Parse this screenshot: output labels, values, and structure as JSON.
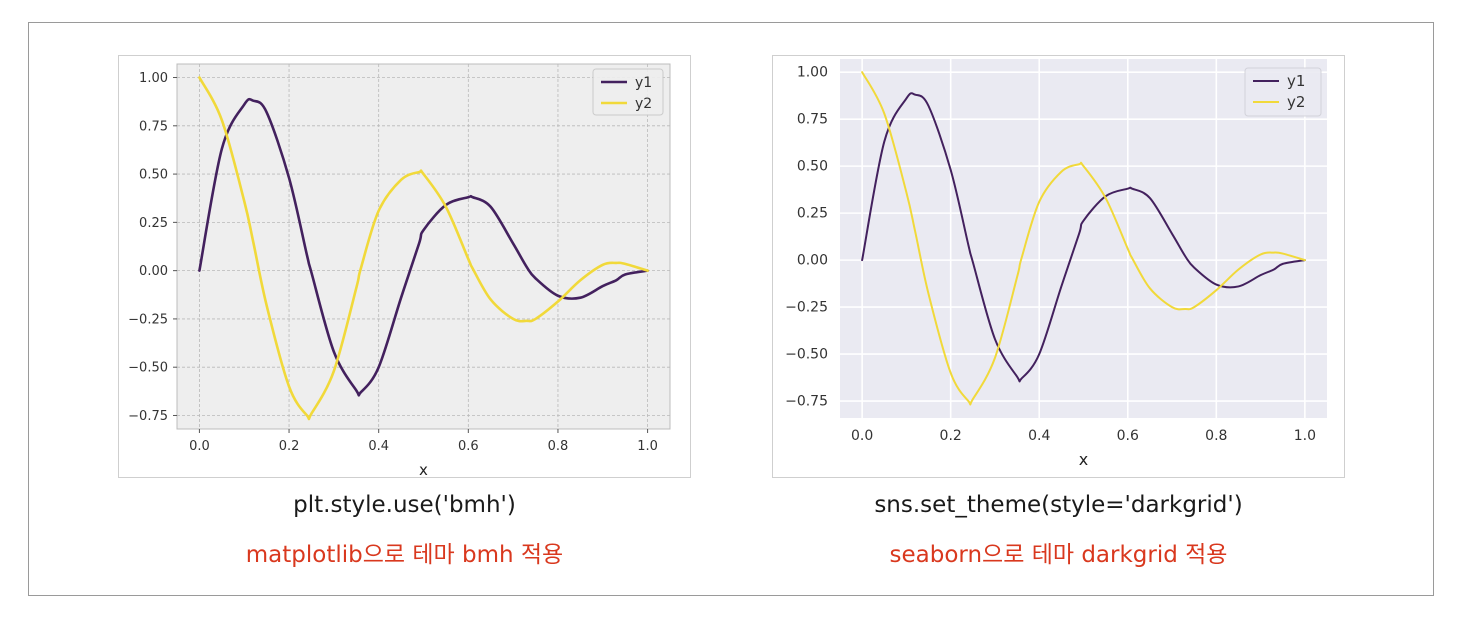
{
  "colors": {
    "y1": "#43215e",
    "y2": "#f1d93a",
    "bmh_bg": "#eeeeee",
    "darkgrid_bg": "#eaeaf2",
    "caption_red": "#d9381e"
  },
  "captions": {
    "left_code": "plt.style.use('bmh')",
    "left_desc": "matplotlib으로 테마 bmh 적용",
    "right_code": "sns.set_theme(style='darkgrid')",
    "right_desc": "seaborn으로 테마 darkgrid 적용"
  },
  "chart_data": [
    {
      "type": "line",
      "style": "bmh",
      "title": "",
      "xlabel": "x",
      "ylabel": "",
      "xlim": [
        -0.05,
        1.05
      ],
      "ylim": [
        -0.82,
        1.07
      ],
      "xticks": [
        0.0,
        0.2,
        0.4,
        0.6,
        0.8,
        1.0
      ],
      "xtick_labels": [
        "0.0",
        "0.2",
        "0.4",
        "0.6",
        "0.8",
        "1.0"
      ],
      "yticks": [
        1.0,
        0.75,
        0.5,
        0.25,
        0.0,
        -0.25,
        -0.5,
        -0.75
      ],
      "ytick_labels": [
        "1.00",
        "0.75",
        "0.50",
        "0.25",
        "0.00",
        "−0.25",
        "−0.50",
        "−0.75"
      ],
      "grid": true,
      "legend_position": "top-right",
      "x": [
        0.0,
        0.05,
        0.1,
        0.12,
        0.15,
        0.2,
        0.24,
        0.25,
        0.3,
        0.35,
        0.36,
        0.4,
        0.45,
        0.49,
        0.5,
        0.55,
        0.6,
        0.61,
        0.65,
        0.7,
        0.73,
        0.75,
        0.8,
        0.85,
        0.9,
        0.93,
        0.95,
        1.0
      ],
      "series": [
        {
          "name": "y1",
          "values": [
            0.0,
            0.63,
            0.86,
            0.88,
            0.82,
            0.48,
            0.08,
            -0.01,
            -0.42,
            -0.62,
            -0.63,
            -0.5,
            -0.14,
            0.14,
            0.21,
            0.34,
            0.38,
            0.38,
            0.33,
            0.14,
            0.02,
            -0.04,
            -0.13,
            -0.14,
            -0.08,
            -0.05,
            -0.02,
            0.0
          ]
        },
        {
          "name": "y2",
          "values": [
            1.0,
            0.78,
            0.36,
            0.15,
            -0.18,
            -0.6,
            -0.75,
            -0.74,
            -0.52,
            -0.09,
            0.01,
            0.31,
            0.47,
            0.51,
            0.5,
            0.33,
            0.06,
            0.01,
            -0.15,
            -0.25,
            -0.26,
            -0.25,
            -0.16,
            -0.05,
            0.03,
            0.04,
            0.035,
            0.0
          ]
        }
      ]
    },
    {
      "type": "line",
      "style": "darkgrid",
      "title": "",
      "xlabel": "x",
      "ylabel": "",
      "xlim": [
        -0.05,
        1.05
      ],
      "ylim": [
        -0.84,
        1.07
      ],
      "xticks": [
        0.0,
        0.2,
        0.4,
        0.6,
        0.8,
        1.0
      ],
      "xtick_labels": [
        "0.0",
        "0.2",
        "0.4",
        "0.6",
        "0.8",
        "1.0"
      ],
      "yticks": [
        1.0,
        0.75,
        0.5,
        0.25,
        0.0,
        -0.25,
        -0.5,
        -0.75
      ],
      "ytick_labels": [
        "1.00",
        "0.75",
        "0.50",
        "0.25",
        "0.00",
        "−0.25",
        "−0.50",
        "−0.75"
      ],
      "grid": true,
      "legend_position": "top-right",
      "x": [
        0.0,
        0.05,
        0.1,
        0.12,
        0.15,
        0.2,
        0.24,
        0.25,
        0.3,
        0.35,
        0.36,
        0.4,
        0.45,
        0.49,
        0.5,
        0.55,
        0.6,
        0.61,
        0.65,
        0.7,
        0.73,
        0.75,
        0.8,
        0.85,
        0.9,
        0.93,
        0.95,
        1.0
      ],
      "series": [
        {
          "name": "y1",
          "values": [
            0.0,
            0.63,
            0.86,
            0.88,
            0.82,
            0.48,
            0.08,
            -0.01,
            -0.42,
            -0.62,
            -0.63,
            -0.5,
            -0.14,
            0.14,
            0.21,
            0.34,
            0.38,
            0.38,
            0.33,
            0.14,
            0.02,
            -0.04,
            -0.13,
            -0.14,
            -0.08,
            -0.05,
            -0.02,
            0.0
          ]
        },
        {
          "name": "y2",
          "values": [
            1.0,
            0.78,
            0.36,
            0.15,
            -0.18,
            -0.6,
            -0.75,
            -0.74,
            -0.52,
            -0.09,
            0.01,
            0.31,
            0.47,
            0.51,
            0.5,
            0.33,
            0.06,
            0.01,
            -0.15,
            -0.25,
            -0.26,
            -0.25,
            -0.16,
            -0.05,
            0.03,
            0.04,
            0.035,
            0.0
          ]
        }
      ]
    }
  ]
}
